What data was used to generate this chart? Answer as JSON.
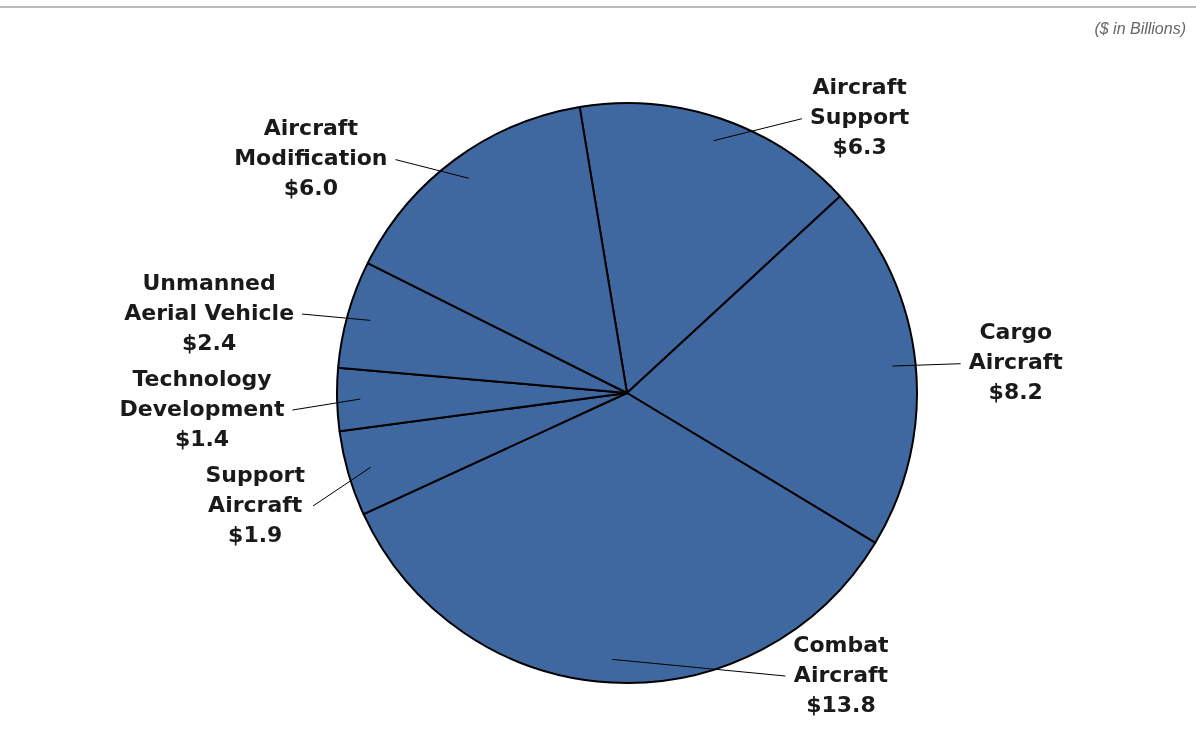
{
  "chart_data": {
    "type": "pie",
    "categories": [
      "Aircraft Support",
      "Cargo Aircraft",
      "Combat Aircraft",
      "Support Aircraft",
      "Technology Development",
      "Unmanned Aerial Vehicle",
      "Aircraft Modification"
    ],
    "values": [
      6.3,
      8.2,
      13.8,
      1.9,
      1.4,
      2.4,
      6.0
    ],
    "value_labels": [
      "$6.3",
      "$8.2",
      "$13.8",
      "$1.9",
      "$1.4",
      "$2.4",
      "$6.0"
    ],
    "colors": [
      "#3f68a0",
      "#3f68a0",
      "#3f68a0",
      "#3f68a0",
      "#3f68a0",
      "#3f68a0",
      "#3f68a0"
    ],
    "annotations": [
      "($ in Billions)"
    ],
    "legend": false
  }
}
